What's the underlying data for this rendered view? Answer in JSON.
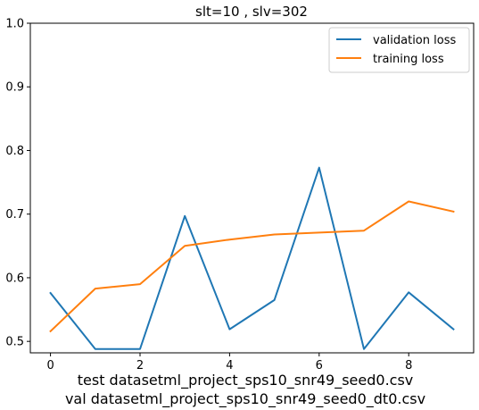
{
  "chart_data": {
    "type": "line",
    "title": "slt=10 , slv=302",
    "xlabel": "",
    "ylabel": "",
    "x": [
      0,
      1,
      2,
      3,
      4,
      5,
      6,
      7,
      8,
      9
    ],
    "xlim": [
      -0.45,
      9.45
    ],
    "ylim": [
      0.482,
      1.0
    ],
    "xticks": [
      0,
      2,
      4,
      6,
      8
    ],
    "yticks": [
      0.5,
      0.6,
      0.7,
      0.8,
      0.9,
      1.0
    ],
    "xtick_labels": [
      "0",
      "2",
      "4",
      "6",
      "8"
    ],
    "ytick_labels": [
      "0.5",
      "0.6",
      "0.7",
      "0.8",
      "0.9",
      "1.0"
    ],
    "series": [
      {
        "name": "validation loss",
        "color": "#1f77b4",
        "values": [
          0.576,
          0.488,
          0.488,
          0.697,
          0.519,
          0.565,
          0.773,
          0.488,
          0.577,
          0.519
        ]
      },
      {
        "name": "training loss",
        "color": "#ff7f0e",
        "values": [
          0.516,
          0.583,
          0.59,
          0.65,
          0.66,
          0.668,
          0.671,
          0.674,
          0.72,
          0.704
        ]
      }
    ],
    "legend_position": "top-right",
    "grid": false
  },
  "captions": [
    "test datasetml_project_sps10_snr49_seed0.csv",
    "val datasetml_project_sps10_snr49_seed0_dt0.csv"
  ]
}
